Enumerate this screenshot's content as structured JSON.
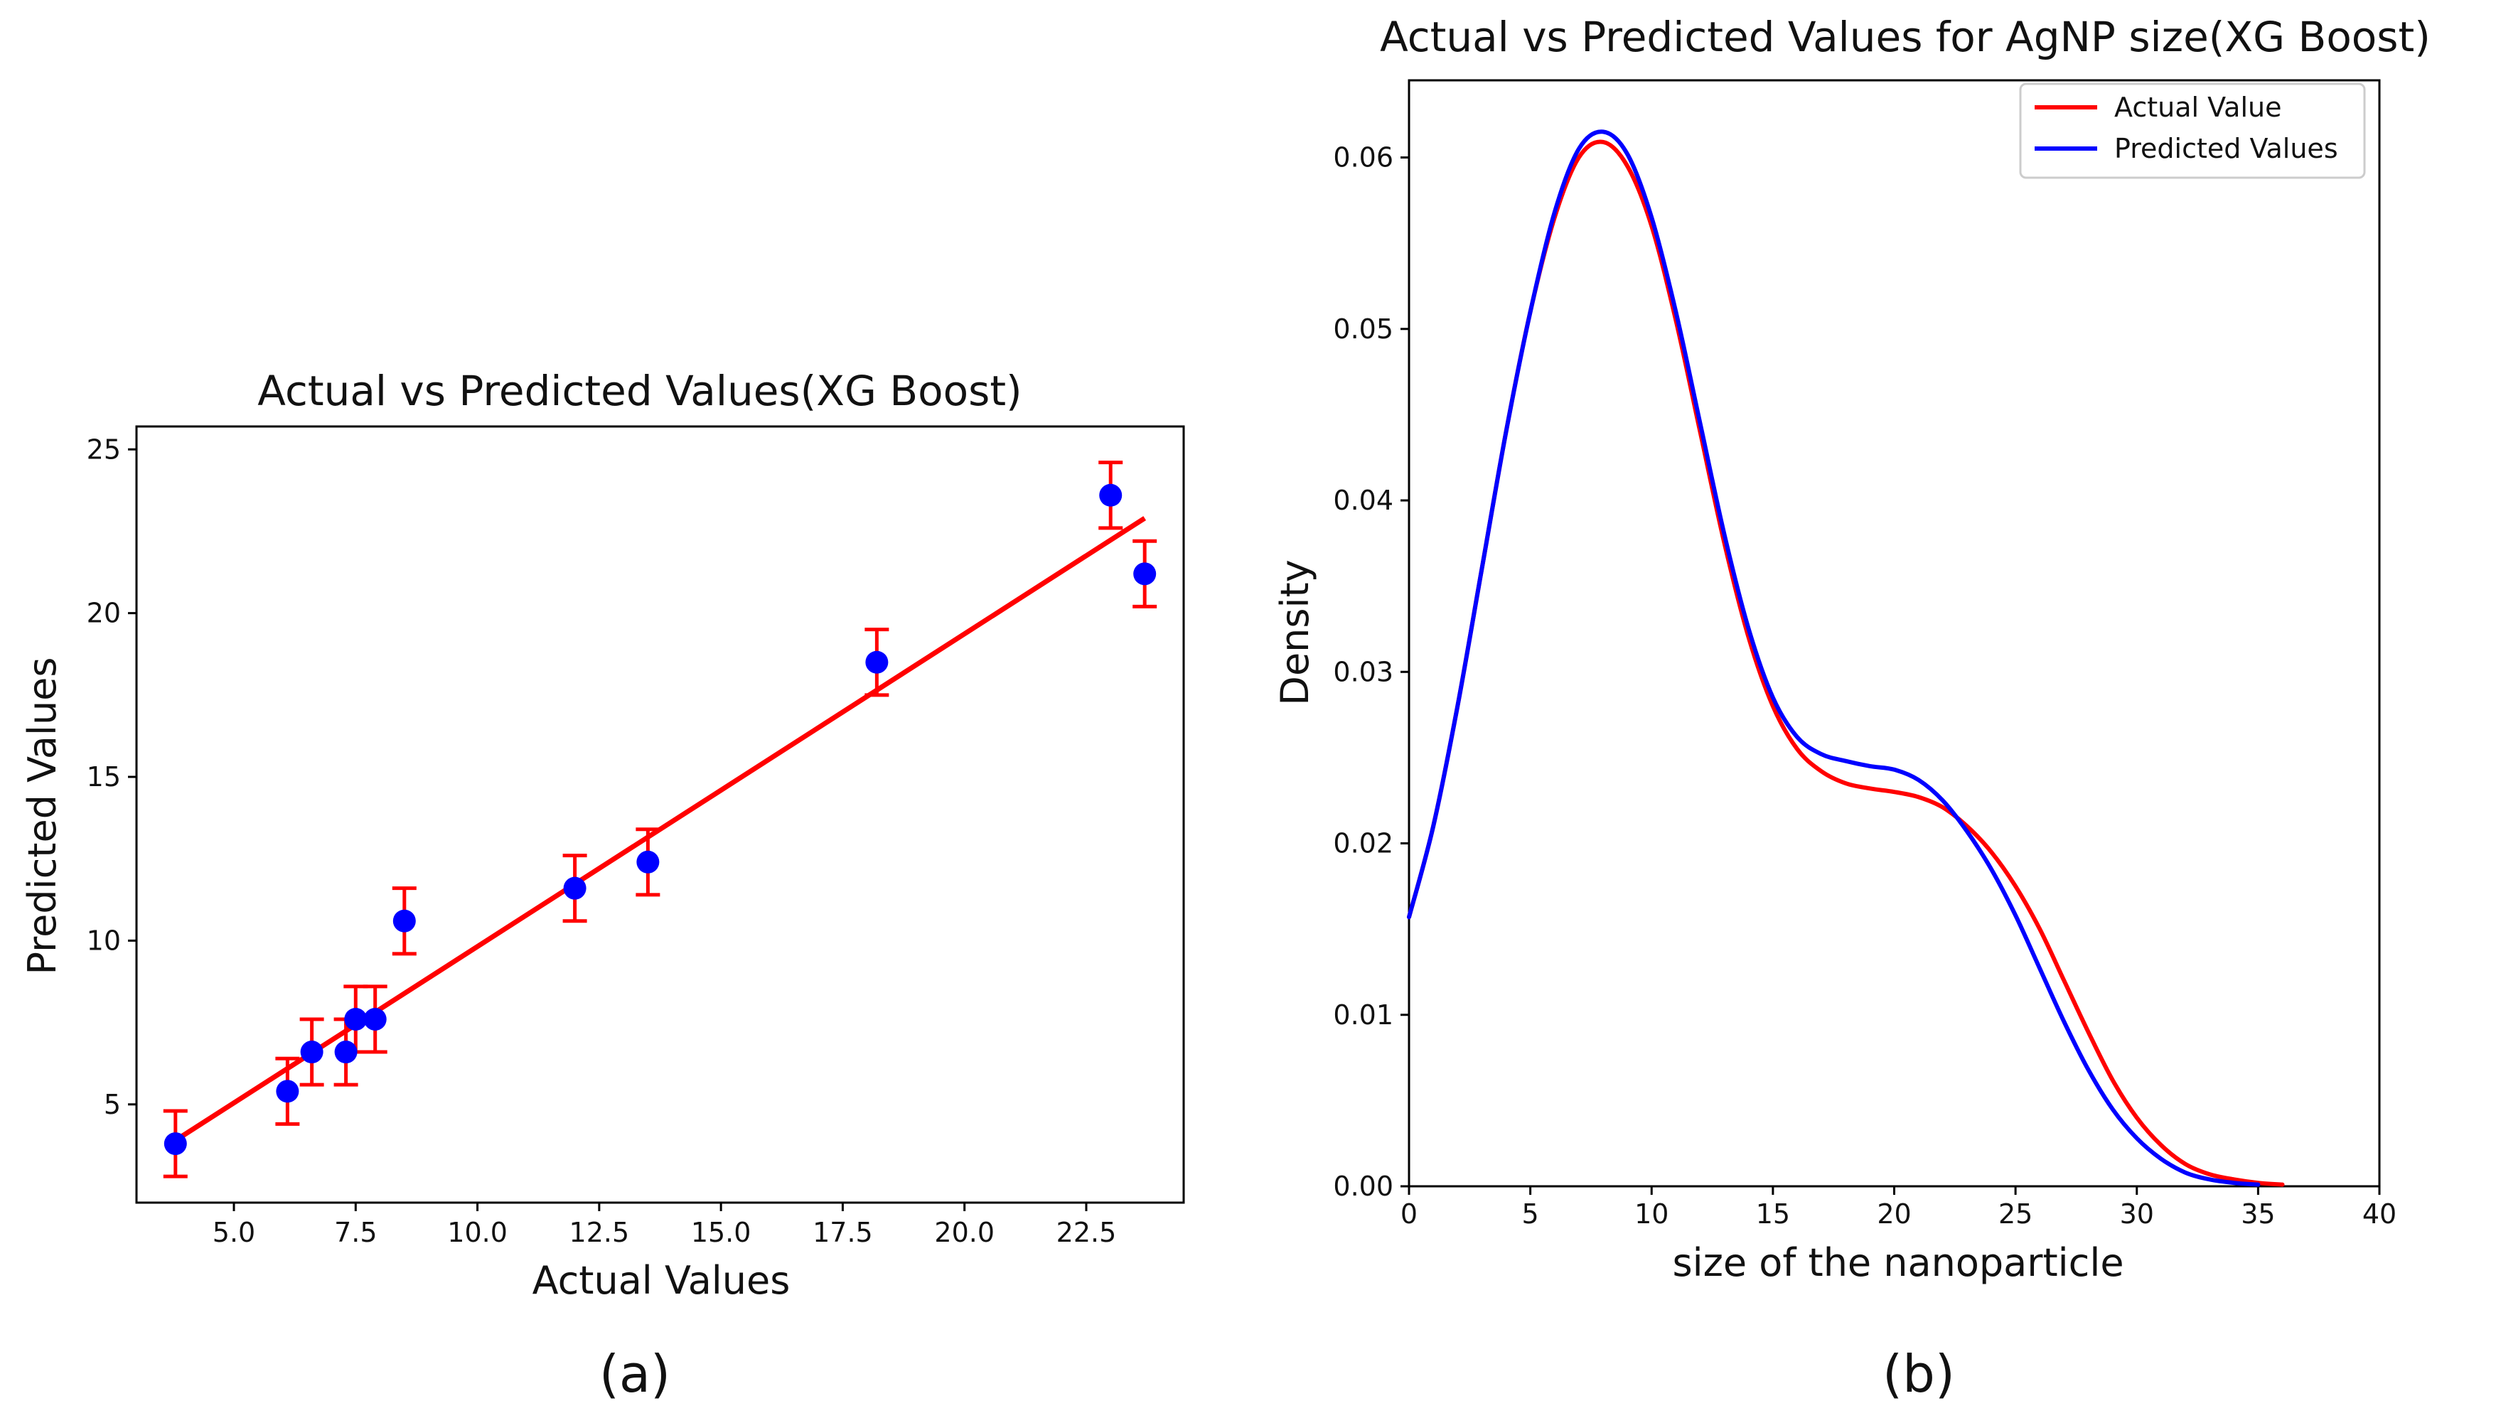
{
  "chart_data": [
    {
      "type": "scatter",
      "title": "Actual vs Predicted Values(XG Boost)",
      "xlabel": "Actual Values",
      "ylabel": "Predicted Values",
      "panel_label": "(a)",
      "xlim": [
        3.0,
        24.5
      ],
      "ylim": [
        2.0,
        25.7
      ],
      "xticks": [
        "5.0",
        "7.5",
        "10.0",
        "12.5",
        "15.0",
        "17.5",
        "20.0",
        "22.5"
      ],
      "xtick_values": [
        5,
        7.5,
        10,
        12.5,
        15,
        17.5,
        20,
        22.5
      ],
      "yticks": [
        "5",
        "10",
        "15",
        "20",
        "25"
      ],
      "ytick_values": [
        5,
        10,
        15,
        20,
        25
      ],
      "points": [
        {
          "x": 3.8,
          "y": 3.8
        },
        {
          "x": 6.1,
          "y": 5.4
        },
        {
          "x": 6.6,
          "y": 6.6
        },
        {
          "x": 7.3,
          "y": 6.6
        },
        {
          "x": 7.5,
          "y": 7.6
        },
        {
          "x": 7.9,
          "y": 7.6
        },
        {
          "x": 8.5,
          "y": 10.6
        },
        {
          "x": 12.0,
          "y": 11.6
        },
        {
          "x": 13.5,
          "y": 12.4
        },
        {
          "x": 18.2,
          "y": 18.5
        },
        {
          "x": 23.0,
          "y": 23.6
        },
        {
          "x": 23.7,
          "y": 21.2
        }
      ],
      "error": 1.0,
      "fit_line": {
        "x": [
          3.8,
          23.7
        ],
        "y": [
          3.9,
          22.9
        ]
      },
      "grid": false,
      "colors": {
        "points": "#0000ff",
        "errorbars": "#ff0000",
        "fit": "#ff0000"
      }
    },
    {
      "type": "line",
      "title": "Actual vs Predicted Values for AgNP size(XG Boost)",
      "xlabel": "size of the nanoparticle",
      "ylabel": "Density",
      "panel_label": "(b)",
      "xlim": [
        0,
        40
      ],
      "ylim": [
        0,
        0.0645
      ],
      "xticks": [
        "0",
        "5",
        "10",
        "15",
        "20",
        "25",
        "30",
        "35",
        "40"
      ],
      "xtick_values": [
        0,
        5,
        10,
        15,
        20,
        25,
        30,
        35,
        40
      ],
      "yticks": [
        "0.00",
        "0.01",
        "0.02",
        "0.03",
        "0.04",
        "0.05",
        "0.06"
      ],
      "ytick_values": [
        0,
        0.01,
        0.02,
        0.03,
        0.04,
        0.05,
        0.06
      ],
      "legend_position": "top-right",
      "grid": false,
      "series": [
        {
          "name": "Actual Value",
          "color": "#ff0000",
          "x": [
            0,
            1,
            2,
            3,
            4,
            5,
            6,
            7,
            8,
            9,
            10,
            11,
            12,
            13,
            14,
            15,
            16,
            17,
            18,
            19,
            20,
            21,
            22,
            23,
            24,
            25,
            26,
            27,
            28,
            29,
            30,
            31,
            32,
            33,
            34,
            35,
            36
          ],
          "y": [
            0.0157,
            0.021,
            0.028,
            0.036,
            0.044,
            0.051,
            0.0565,
            0.06,
            0.0609,
            0.0595,
            0.056,
            0.0505,
            0.044,
            0.0375,
            0.032,
            0.028,
            0.0255,
            0.0242,
            0.0235,
            0.0232,
            0.023,
            0.0227,
            0.0221,
            0.021,
            0.0195,
            0.0175,
            0.015,
            0.012,
            0.009,
            0.0062,
            0.004,
            0.0024,
            0.0013,
            0.0007,
            0.0004,
            0.0002,
            0.0001
          ]
        },
        {
          "name": "Predicted Values",
          "color": "#0000ff",
          "x": [
            0,
            1,
            2,
            3,
            4,
            5,
            6,
            7,
            8,
            9,
            10,
            11,
            12,
            13,
            14,
            15,
            16,
            17,
            18,
            19,
            20,
            21,
            22,
            23,
            24,
            25,
            26,
            27,
            28,
            29,
            30,
            31,
            32,
            33,
            34,
            35
          ],
          "y": [
            0.0157,
            0.021,
            0.028,
            0.036,
            0.044,
            0.051,
            0.0568,
            0.0605,
            0.0615,
            0.0602,
            0.0565,
            0.051,
            0.0445,
            0.038,
            0.0325,
            0.0285,
            0.0262,
            0.0252,
            0.0248,
            0.0245,
            0.0243,
            0.0237,
            0.0225,
            0.0207,
            0.0185,
            0.0158,
            0.0127,
            0.0096,
            0.0068,
            0.0045,
            0.0028,
            0.0016,
            0.0008,
            0.0004,
            0.0002,
            0.0001
          ]
        }
      ]
    }
  ]
}
